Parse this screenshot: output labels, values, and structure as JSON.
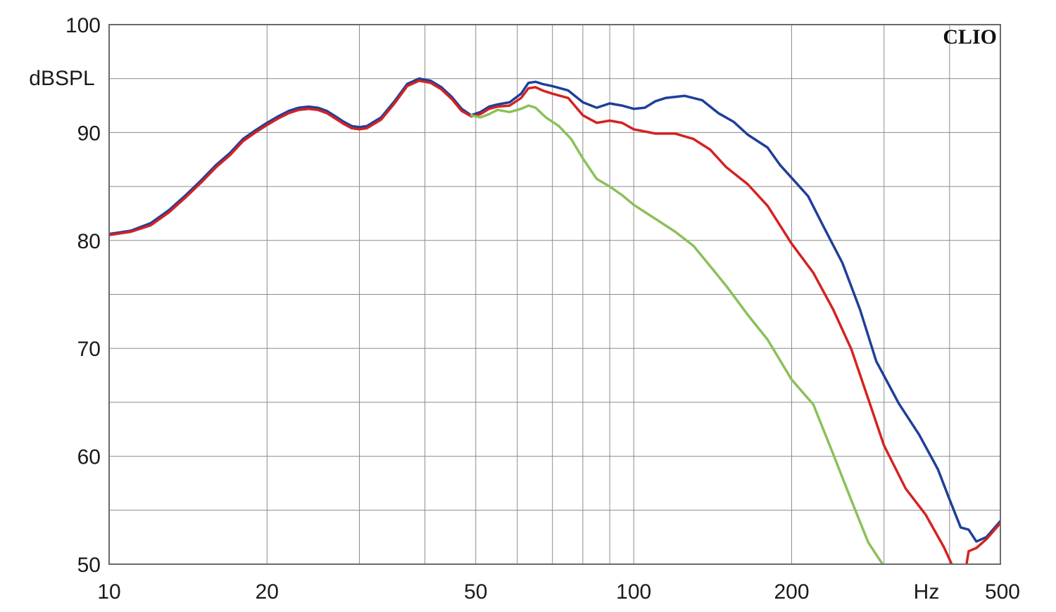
{
  "chart_data": {
    "type": "line",
    "title": "",
    "brand": "CLIO",
    "ylabel": "dBSPL",
    "xlabel": "Hz",
    "x_scale": "log",
    "xlim": [
      10,
      500
    ],
    "ylim": [
      50,
      100
    ],
    "grid": true,
    "x_tick_labels": [
      {
        "value": 10,
        "label": "10"
      },
      {
        "value": 20,
        "label": "20"
      },
      {
        "value": 50,
        "label": "50"
      },
      {
        "value": 100,
        "label": "100"
      },
      {
        "value": 200,
        "label": "200"
      },
      {
        "value": 500,
        "label": "500"
      }
    ],
    "x_grid_values": [
      20,
      30,
      40,
      50,
      60,
      70,
      80,
      90,
      100,
      200,
      300,
      400
    ],
    "y_tick_labels": [
      {
        "value": 100,
        "label": "100"
      },
      {
        "value": 90,
        "label": "90"
      },
      {
        "value": 80,
        "label": "80"
      },
      {
        "value": 70,
        "label": "70"
      },
      {
        "value": 60,
        "label": "60"
      },
      {
        "value": 50,
        "label": "50"
      }
    ],
    "y_grid_values": [
      55,
      60,
      65,
      70,
      75,
      80,
      85,
      90,
      95
    ],
    "series": [
      {
        "color": "#1f3f99",
        "points": [
          [
            10,
            80.6
          ],
          [
            11,
            80.9
          ],
          [
            12,
            81.6
          ],
          [
            13,
            82.8
          ],
          [
            14,
            84.2
          ],
          [
            15,
            85.6
          ],
          [
            16,
            87.0
          ],
          [
            17,
            88.1
          ],
          [
            18,
            89.4
          ],
          [
            19,
            90.2
          ],
          [
            20,
            90.9
          ],
          [
            21,
            91.5
          ],
          [
            22,
            92.0
          ],
          [
            23,
            92.3
          ],
          [
            24,
            92.4
          ],
          [
            25,
            92.3
          ],
          [
            26,
            92.0
          ],
          [
            27,
            91.5
          ],
          [
            28,
            91.0
          ],
          [
            29,
            90.6
          ],
          [
            30,
            90.5
          ],
          [
            31,
            90.6
          ],
          [
            33,
            91.4
          ],
          [
            35,
            92.9
          ],
          [
            37,
            94.5
          ],
          [
            39,
            95.0
          ],
          [
            41,
            94.8
          ],
          [
            43,
            94.2
          ],
          [
            45,
            93.3
          ],
          [
            47,
            92.2
          ],
          [
            49,
            91.6
          ],
          [
            51,
            91.9
          ],
          [
            53,
            92.4
          ],
          [
            55,
            92.6
          ],
          [
            58,
            92.8
          ],
          [
            61,
            93.6
          ],
          [
            63,
            94.6
          ],
          [
            65,
            94.7
          ],
          [
            67,
            94.5
          ],
          [
            70,
            94.3
          ],
          [
            75,
            93.9
          ],
          [
            80,
            92.8
          ],
          [
            85,
            92.3
          ],
          [
            90,
            92.7
          ],
          [
            95,
            92.5
          ],
          [
            100,
            92.2
          ],
          [
            105,
            92.3
          ],
          [
            110,
            92.9
          ],
          [
            115,
            93.2
          ],
          [
            125,
            93.4
          ],
          [
            135,
            93.0
          ],
          [
            145,
            91.8
          ],
          [
            155,
            91.0
          ],
          [
            165,
            89.8
          ],
          [
            180,
            88.6
          ],
          [
            190,
            87.0
          ],
          [
            200,
            85.8
          ],
          [
            215,
            84.1
          ],
          [
            230,
            81.3
          ],
          [
            250,
            77.9
          ],
          [
            270,
            73.6
          ],
          [
            290,
            68.8
          ],
          [
            320,
            64.9
          ],
          [
            350,
            62.0
          ],
          [
            380,
            58.8
          ],
          [
            400,
            56.0
          ],
          [
            420,
            53.4
          ],
          [
            435,
            53.2
          ],
          [
            450,
            52.1
          ],
          [
            470,
            52.5
          ],
          [
            490,
            53.5
          ],
          [
            500,
            54.0
          ]
        ]
      },
      {
        "color": "#d42222",
        "points": [
          [
            10,
            80.5
          ],
          [
            11,
            80.8
          ],
          [
            12,
            81.4
          ],
          [
            13,
            82.6
          ],
          [
            14,
            84.0
          ],
          [
            15,
            85.4
          ],
          [
            16,
            86.8
          ],
          [
            17,
            87.9
          ],
          [
            18,
            89.2
          ],
          [
            19,
            90.0
          ],
          [
            20,
            90.7
          ],
          [
            21,
            91.3
          ],
          [
            22,
            91.8
          ],
          [
            23,
            92.1
          ],
          [
            24,
            92.2
          ],
          [
            25,
            92.1
          ],
          [
            26,
            91.8
          ],
          [
            27,
            91.3
          ],
          [
            28,
            90.8
          ],
          [
            29,
            90.4
          ],
          [
            30,
            90.3
          ],
          [
            31,
            90.4
          ],
          [
            33,
            91.2
          ],
          [
            35,
            92.7
          ],
          [
            37,
            94.3
          ],
          [
            39,
            94.8
          ],
          [
            41,
            94.6
          ],
          [
            43,
            94.0
          ],
          [
            45,
            93.1
          ],
          [
            47,
            92.0
          ],
          [
            49,
            91.5
          ],
          [
            51,
            91.7
          ],
          [
            53,
            92.2
          ],
          [
            55,
            92.4
          ],
          [
            58,
            92.5
          ],
          [
            61,
            93.2
          ],
          [
            63,
            94.1
          ],
          [
            65,
            94.2
          ],
          [
            67,
            93.9
          ],
          [
            70,
            93.6
          ],
          [
            75,
            93.2
          ],
          [
            80,
            91.6
          ],
          [
            85,
            90.9
          ],
          [
            90,
            91.1
          ],
          [
            95,
            90.9
          ],
          [
            100,
            90.3
          ],
          [
            110,
            89.9
          ],
          [
            120,
            89.9
          ],
          [
            130,
            89.4
          ],
          [
            140,
            88.4
          ],
          [
            150,
            86.8
          ],
          [
            165,
            85.2
          ],
          [
            180,
            83.2
          ],
          [
            200,
            79.7
          ],
          [
            220,
            77.0
          ],
          [
            240,
            73.6
          ],
          [
            260,
            69.9
          ],
          [
            280,
            65.3
          ],
          [
            300,
            61.0
          ],
          [
            330,
            57.0
          ],
          [
            360,
            54.6
          ],
          [
            390,
            51.6
          ],
          [
            410,
            49.3
          ],
          [
            425,
            48.2
          ],
          [
            435,
            51.2
          ],
          [
            450,
            51.5
          ],
          [
            470,
            52.3
          ],
          [
            500,
            53.8
          ]
        ]
      },
      {
        "color": "#8bc05a",
        "points": [
          [
            49,
            91.6
          ],
          [
            51,
            91.4
          ],
          [
            53,
            91.7
          ],
          [
            55,
            92.1
          ],
          [
            58,
            91.9
          ],
          [
            61,
            92.2
          ],
          [
            63,
            92.5
          ],
          [
            65,
            92.3
          ],
          [
            68,
            91.4
          ],
          [
            72,
            90.6
          ],
          [
            76,
            89.4
          ],
          [
            80,
            87.6
          ],
          [
            85,
            85.7
          ],
          [
            90,
            85.0
          ],
          [
            95,
            84.2
          ],
          [
            100,
            83.3
          ],
          [
            110,
            82.0
          ],
          [
            120,
            80.8
          ],
          [
            130,
            79.5
          ],
          [
            140,
            77.6
          ],
          [
            150,
            75.8
          ],
          [
            165,
            73.1
          ],
          [
            180,
            70.8
          ],
          [
            200,
            67.1
          ],
          [
            220,
            64.8
          ],
          [
            240,
            60.2
          ],
          [
            260,
            55.9
          ],
          [
            280,
            52.0
          ],
          [
            300,
            49.8
          ]
        ]
      }
    ]
  }
}
